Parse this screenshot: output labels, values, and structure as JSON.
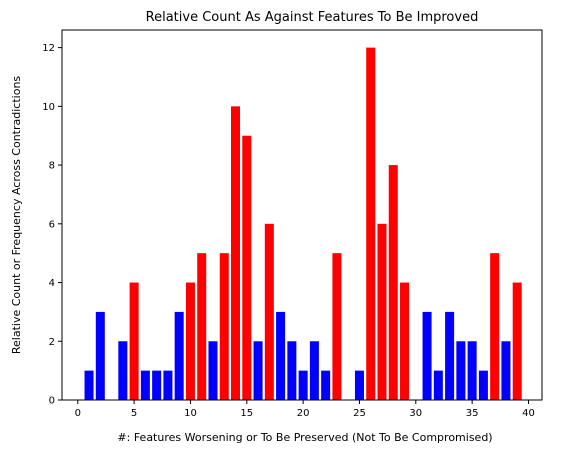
{
  "chart_data": {
    "type": "bar",
    "title": "Relative Count As Against Features To Be Improved",
    "xlabel": "#: Features Worsening or To Be Preserved (Not To Be Compromised)",
    "ylabel": "Relative Count or Frequency Across Contradictions",
    "xlim": [
      -1.4,
      41.2
    ],
    "ylim": [
      0,
      12.6
    ],
    "xticks": [
      0,
      5,
      10,
      15,
      20,
      25,
      30,
      35,
      40
    ],
    "yticks": [
      0,
      2,
      4,
      6,
      8,
      10,
      12
    ],
    "grid": false,
    "colors": {
      "low": "#0000ff",
      "high": "#ff0000"
    },
    "bars": [
      {
        "x": 1,
        "value": 1,
        "color": "#0000ff"
      },
      {
        "x": 2,
        "value": 3,
        "color": "#0000ff"
      },
      {
        "x": 4,
        "value": 2,
        "color": "#0000ff"
      },
      {
        "x": 5,
        "value": 4,
        "color": "#ff0000"
      },
      {
        "x": 6,
        "value": 1,
        "color": "#0000ff"
      },
      {
        "x": 7,
        "value": 1,
        "color": "#0000ff"
      },
      {
        "x": 8,
        "value": 1,
        "color": "#0000ff"
      },
      {
        "x": 9,
        "value": 3,
        "color": "#0000ff"
      },
      {
        "x": 10,
        "value": 4,
        "color": "#ff0000"
      },
      {
        "x": 11,
        "value": 5,
        "color": "#ff0000"
      },
      {
        "x": 12,
        "value": 2,
        "color": "#0000ff"
      },
      {
        "x": 13,
        "value": 5,
        "color": "#ff0000"
      },
      {
        "x": 14,
        "value": 10,
        "color": "#ff0000"
      },
      {
        "x": 15,
        "value": 9,
        "color": "#ff0000"
      },
      {
        "x": 16,
        "value": 2,
        "color": "#0000ff"
      },
      {
        "x": 17,
        "value": 6,
        "color": "#ff0000"
      },
      {
        "x": 18,
        "value": 3,
        "color": "#0000ff"
      },
      {
        "x": 19,
        "value": 2,
        "color": "#0000ff"
      },
      {
        "x": 20,
        "value": 1,
        "color": "#0000ff"
      },
      {
        "x": 21,
        "value": 2,
        "color": "#0000ff"
      },
      {
        "x": 22,
        "value": 1,
        "color": "#0000ff"
      },
      {
        "x": 23,
        "value": 5,
        "color": "#ff0000"
      },
      {
        "x": 25,
        "value": 1,
        "color": "#0000ff"
      },
      {
        "x": 26,
        "value": 12,
        "color": "#ff0000"
      },
      {
        "x": 27,
        "value": 6,
        "color": "#ff0000"
      },
      {
        "x": 28,
        "value": 8,
        "color": "#ff0000"
      },
      {
        "x": 29,
        "value": 4,
        "color": "#ff0000"
      },
      {
        "x": 31,
        "value": 3,
        "color": "#0000ff"
      },
      {
        "x": 32,
        "value": 1,
        "color": "#0000ff"
      },
      {
        "x": 33,
        "value": 3,
        "color": "#0000ff"
      },
      {
        "x": 34,
        "value": 2,
        "color": "#0000ff"
      },
      {
        "x": 35,
        "value": 2,
        "color": "#0000ff"
      },
      {
        "x": 36,
        "value": 1,
        "color": "#0000ff"
      },
      {
        "x": 37,
        "value": 5,
        "color": "#ff0000"
      },
      {
        "x": 38,
        "value": 2,
        "color": "#0000ff"
      },
      {
        "x": 39,
        "value": 4,
        "color": "#ff0000"
      }
    ]
  }
}
